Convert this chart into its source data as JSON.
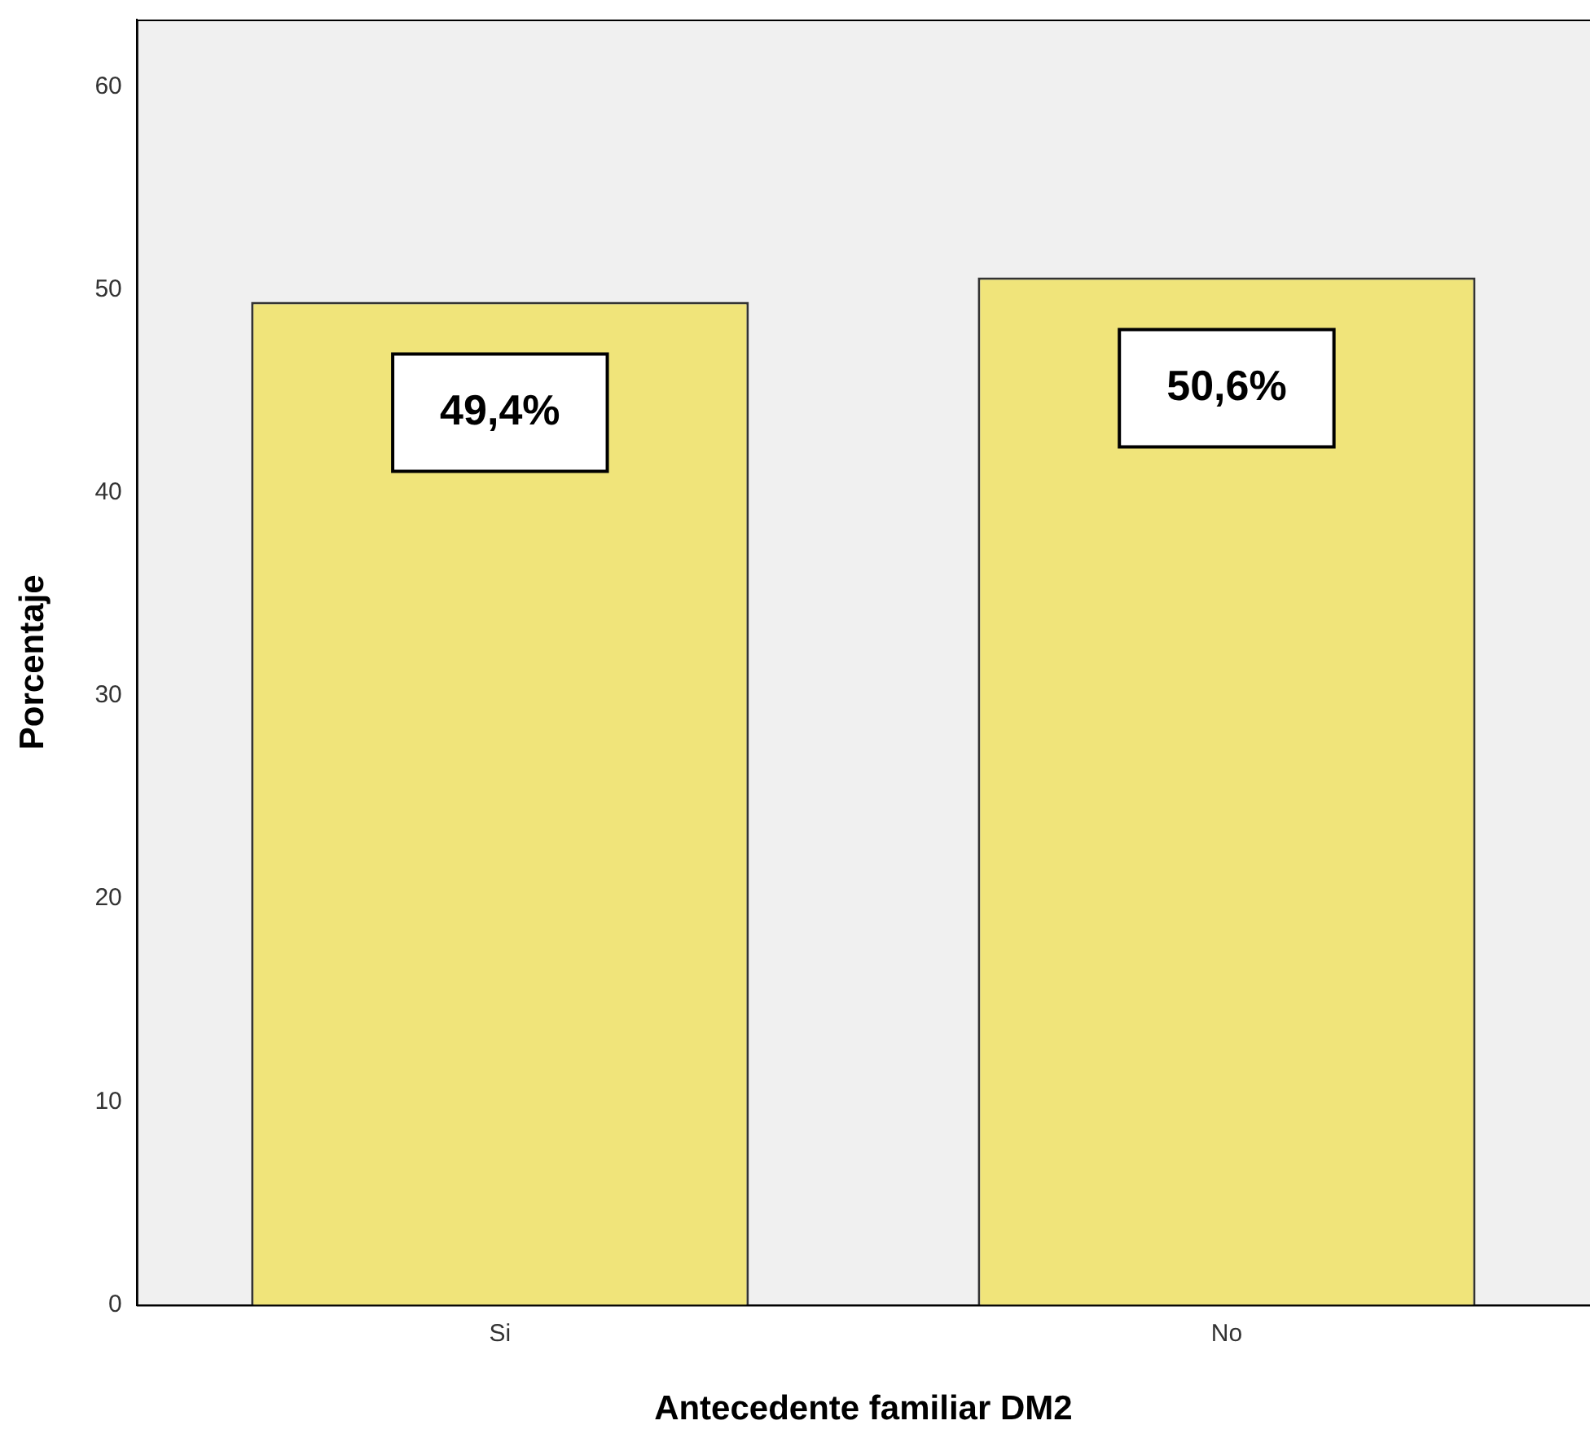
{
  "chart_data": {
    "type": "bar",
    "xlabel": "Antecedente familiar DM2",
    "ylabel": "Porcentaje",
    "categories": [
      "Si",
      "No"
    ],
    "values": [
      49.4,
      50.6
    ],
    "color": "#f0e47a",
    "value_labels": [
      "49,4%",
      "50,6%"
    ],
    "ylim": [
      0,
      63.3
    ],
    "yticks": [
      0,
      10,
      20,
      30,
      40,
      50,
      60
    ],
    "grid": false,
    "legend": false
  }
}
